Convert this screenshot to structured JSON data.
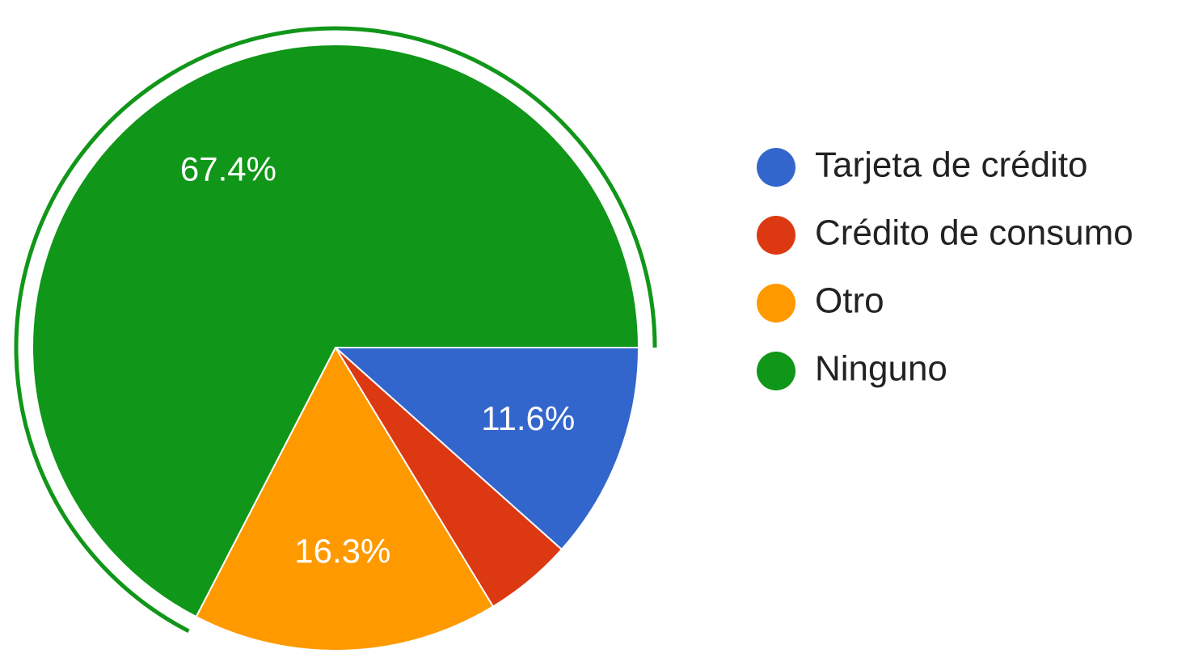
{
  "chart_data": {
    "type": "pie",
    "categories": [
      "Tarjeta de crédito",
      "Crédito de consumo",
      "Otro",
      "Ninguno"
    ],
    "values": [
      11.6,
      4.7,
      16.3,
      67.4
    ],
    "value_labels": [
      "11.6%",
      null,
      "16.3%",
      "67.4%"
    ],
    "colors": [
      "#3366cc",
      "#dc3912",
      "#ff9900",
      "#109618"
    ],
    "legend": "right"
  }
}
